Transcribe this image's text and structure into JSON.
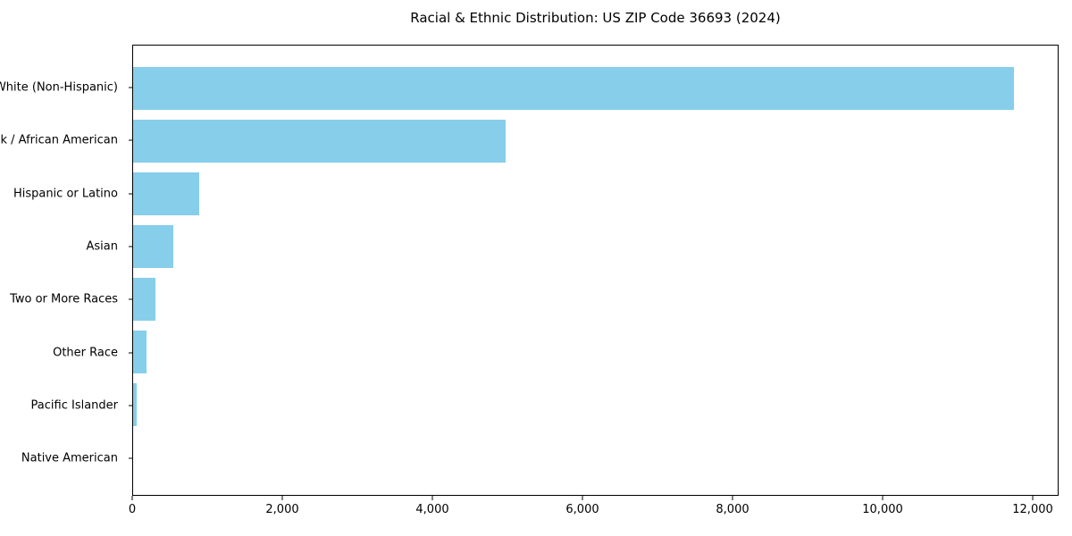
{
  "chart_data": {
    "type": "bar",
    "orientation": "horizontal",
    "title": "Racial & Ethnic Distribution: US ZIP Code 36693 (2024)",
    "categories": [
      "White (Non-Hispanic)",
      "Black / African American",
      "Hispanic or Latino",
      "Asian",
      "Two or More Races",
      "Other Race",
      "Pacific Islander",
      "Native American"
    ],
    "values": [
      11760,
      4975,
      880,
      535,
      300,
      180,
      45,
      0
    ],
    "xlabel": "",
    "ylabel": "",
    "xlim": [
      0,
      12345
    ],
    "x_ticks": [
      {
        "value": 0,
        "label": "0"
      },
      {
        "value": 2000,
        "label": "2,000"
      },
      {
        "value": 4000,
        "label": "4,000"
      },
      {
        "value": 6000,
        "label": "6,000"
      },
      {
        "value": 8000,
        "label": "8,000"
      },
      {
        "value": 10000,
        "label": "10,000"
      },
      {
        "value": 12000,
        "label": "12,000"
      }
    ],
    "grid": false,
    "legend_position": "none",
    "bar_color": "#87CEEB",
    "background_color": "#FFFFFF",
    "axis_color": "#000000",
    "text_color": "#000000"
  }
}
